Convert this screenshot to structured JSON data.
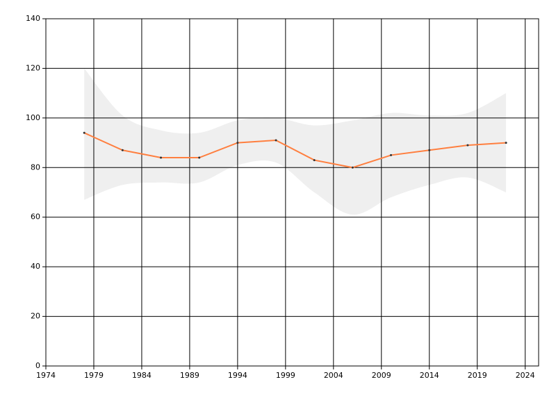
{
  "chart_data": {
    "type": "line",
    "x": [
      1978,
      1982,
      1986,
      1990,
      1994,
      1998,
      2002,
      2006,
      2010,
      2014,
      2018,
      2022
    ],
    "values": [
      94,
      87,
      84,
      84,
      90,
      91,
      83,
      80,
      85,
      87,
      89,
      90
    ],
    "color": "#ff7f3f",
    "band_upper": [
      120,
      101,
      95,
      94,
      99,
      100,
      97,
      99,
      102,
      101,
      102,
      110
    ],
    "band_lower": [
      67,
      73,
      74,
      74,
      81,
      82,
      70,
      61,
      68,
      73,
      76,
      70
    ],
    "band_color": "#efefef",
    "xlim": [
      1974,
      2025.4
    ],
    "xticks": [
      1974,
      1979,
      1984,
      1989,
      1994,
      1999,
      2004,
      2009,
      2014,
      2019,
      2024
    ],
    "ylim": [
      0,
      140
    ],
    "yticks": [
      0,
      20,
      40,
      60,
      80,
      100,
      120,
      140
    ],
    "grid": true
  }
}
